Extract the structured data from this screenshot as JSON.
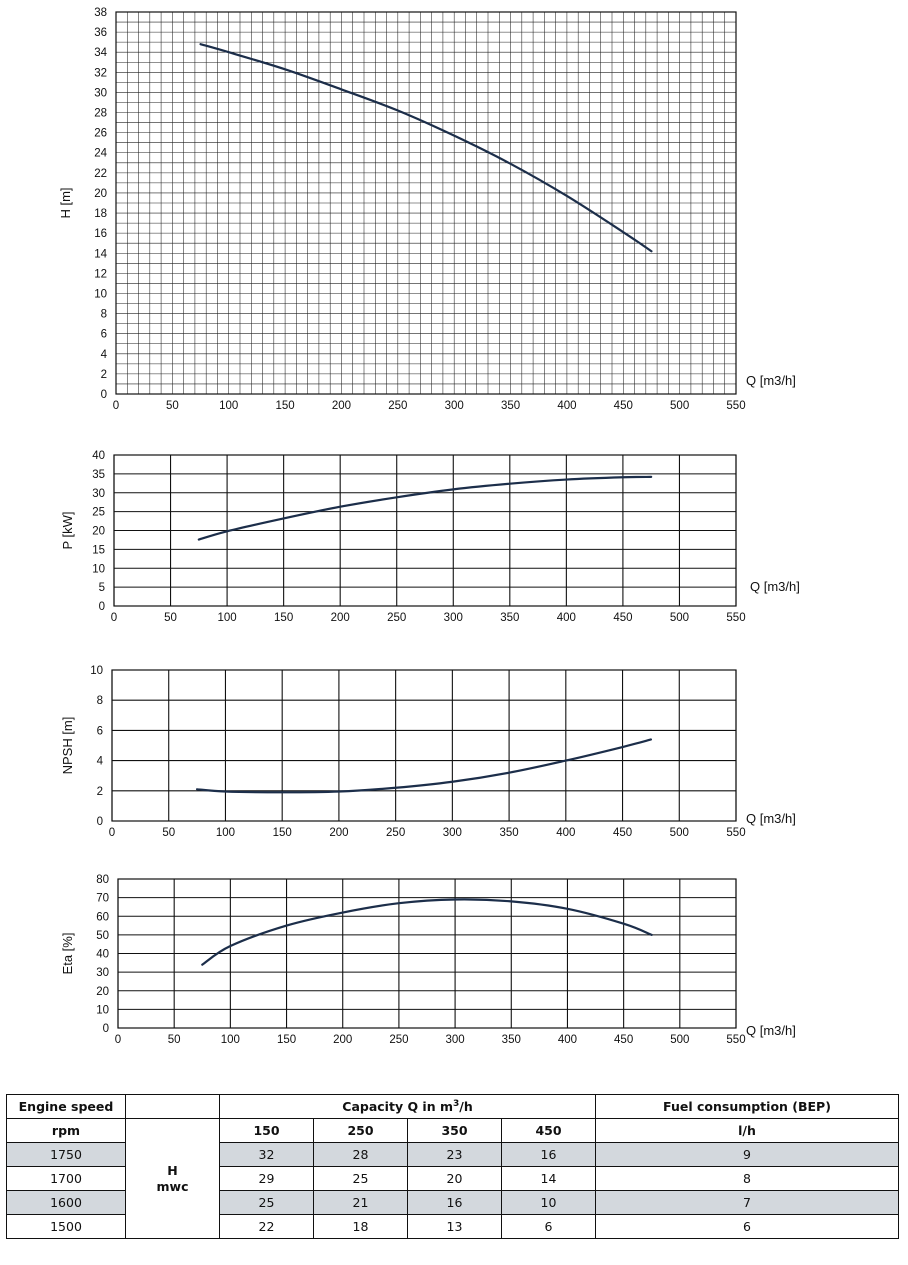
{
  "chart_data": [
    {
      "type": "line",
      "xlabel": "Q [m3/h]",
      "ylabel": "H [m]",
      "xlim": [
        0,
        550
      ],
      "ylim": [
        0,
        38
      ],
      "x_ticks": [
        "0",
        "50",
        "100",
        "150",
        "200",
        "250",
        "300",
        "350",
        "400",
        "450",
        "500",
        "550"
      ],
      "y_ticks": [
        "0",
        "2",
        "4",
        "6",
        "8",
        "10",
        "12",
        "14",
        "16",
        "18",
        "20",
        "22",
        "24",
        "26",
        "28",
        "30",
        "32",
        "34",
        "36",
        "38"
      ],
      "grid": "minor-10",
      "x": [
        75,
        100,
        150,
        200,
        250,
        300,
        350,
        400,
        450,
        475
      ],
      "y": [
        34.8,
        34.0,
        32.3,
        30.3,
        28.2,
        25.7,
        22.9,
        19.7,
        16.1,
        14.2
      ]
    },
    {
      "type": "line",
      "xlabel": "Q [m3/h]",
      "ylabel": "P [kW]",
      "xlim": [
        0,
        550
      ],
      "ylim": [
        0,
        40
      ],
      "x_ticks": [
        "0",
        "50",
        "100",
        "150",
        "200",
        "250",
        "300",
        "350",
        "400",
        "450",
        "500",
        "550"
      ],
      "y_ticks": [
        "0",
        "5",
        "10",
        "15",
        "20",
        "25",
        "30",
        "35",
        "40"
      ],
      "grid": "major",
      "x": [
        75,
        100,
        150,
        200,
        250,
        300,
        350,
        400,
        450,
        475
      ],
      "y": [
        17.6,
        19.8,
        23.2,
        26.3,
        28.8,
        30.9,
        32.4,
        33.5,
        34.1,
        34.2
      ]
    },
    {
      "type": "line",
      "xlabel": "Q [m3/h]",
      "ylabel": "NPSH [m]",
      "xlim": [
        0,
        550
      ],
      "ylim": [
        0,
        10
      ],
      "x_ticks": [
        "0",
        "50",
        "100",
        "150",
        "200",
        "250",
        "300",
        "350",
        "400",
        "450",
        "500",
        "550"
      ],
      "y_ticks": [
        "0",
        "2",
        "4",
        "6",
        "8",
        "10"
      ],
      "grid": "major",
      "x": [
        75,
        100,
        150,
        200,
        250,
        300,
        350,
        400,
        450,
        475
      ],
      "y": [
        2.1,
        1.95,
        1.9,
        1.95,
        2.2,
        2.6,
        3.2,
        4.0,
        4.9,
        5.4
      ]
    },
    {
      "type": "line",
      "xlabel": "Q [m3/h]",
      "ylabel": "Eta [%]",
      "xlim": [
        0,
        550
      ],
      "ylim": [
        0,
        80
      ],
      "x_ticks": [
        "0",
        "50",
        "100",
        "150",
        "200",
        "250",
        "300",
        "350",
        "400",
        "450",
        "500",
        "550"
      ],
      "y_ticks": [
        "0",
        "10",
        "20",
        "30",
        "40",
        "50",
        "60",
        "70",
        "80"
      ],
      "grid": "major",
      "x": [
        75,
        100,
        150,
        200,
        250,
        300,
        350,
        400,
        450,
        475
      ],
      "y": [
        34,
        44,
        55,
        62,
        67,
        69,
        68,
        64,
        56,
        50
      ]
    }
  ],
  "table": {
    "engine_speed_label": "Engine speed",
    "capacity_label_pre": "Capacity Q in m",
    "capacity_label_sup": "3",
    "capacity_label_post": "/h",
    "fuel_label": "Fuel consumption (BEP)",
    "rpm_label": "rpm",
    "h_label": "H",
    "mwc_label": "mwc",
    "capacities": [
      "150",
      "250",
      "350",
      "450"
    ],
    "fuel_unit": "l/h",
    "rows": [
      {
        "rpm": "1750",
        "h": [
          "32",
          "28",
          "23",
          "16"
        ],
        "fuel": "9"
      },
      {
        "rpm": "1700",
        "h": [
          "29",
          "25",
          "20",
          "14"
        ],
        "fuel": "8"
      },
      {
        "rpm": "1600",
        "h": [
          "25",
          "21",
          "16",
          "10"
        ],
        "fuel": "7"
      },
      {
        "rpm": "1500",
        "h": [
          "22",
          "18",
          "13",
          "6"
        ],
        "fuel": "6"
      }
    ]
  }
}
